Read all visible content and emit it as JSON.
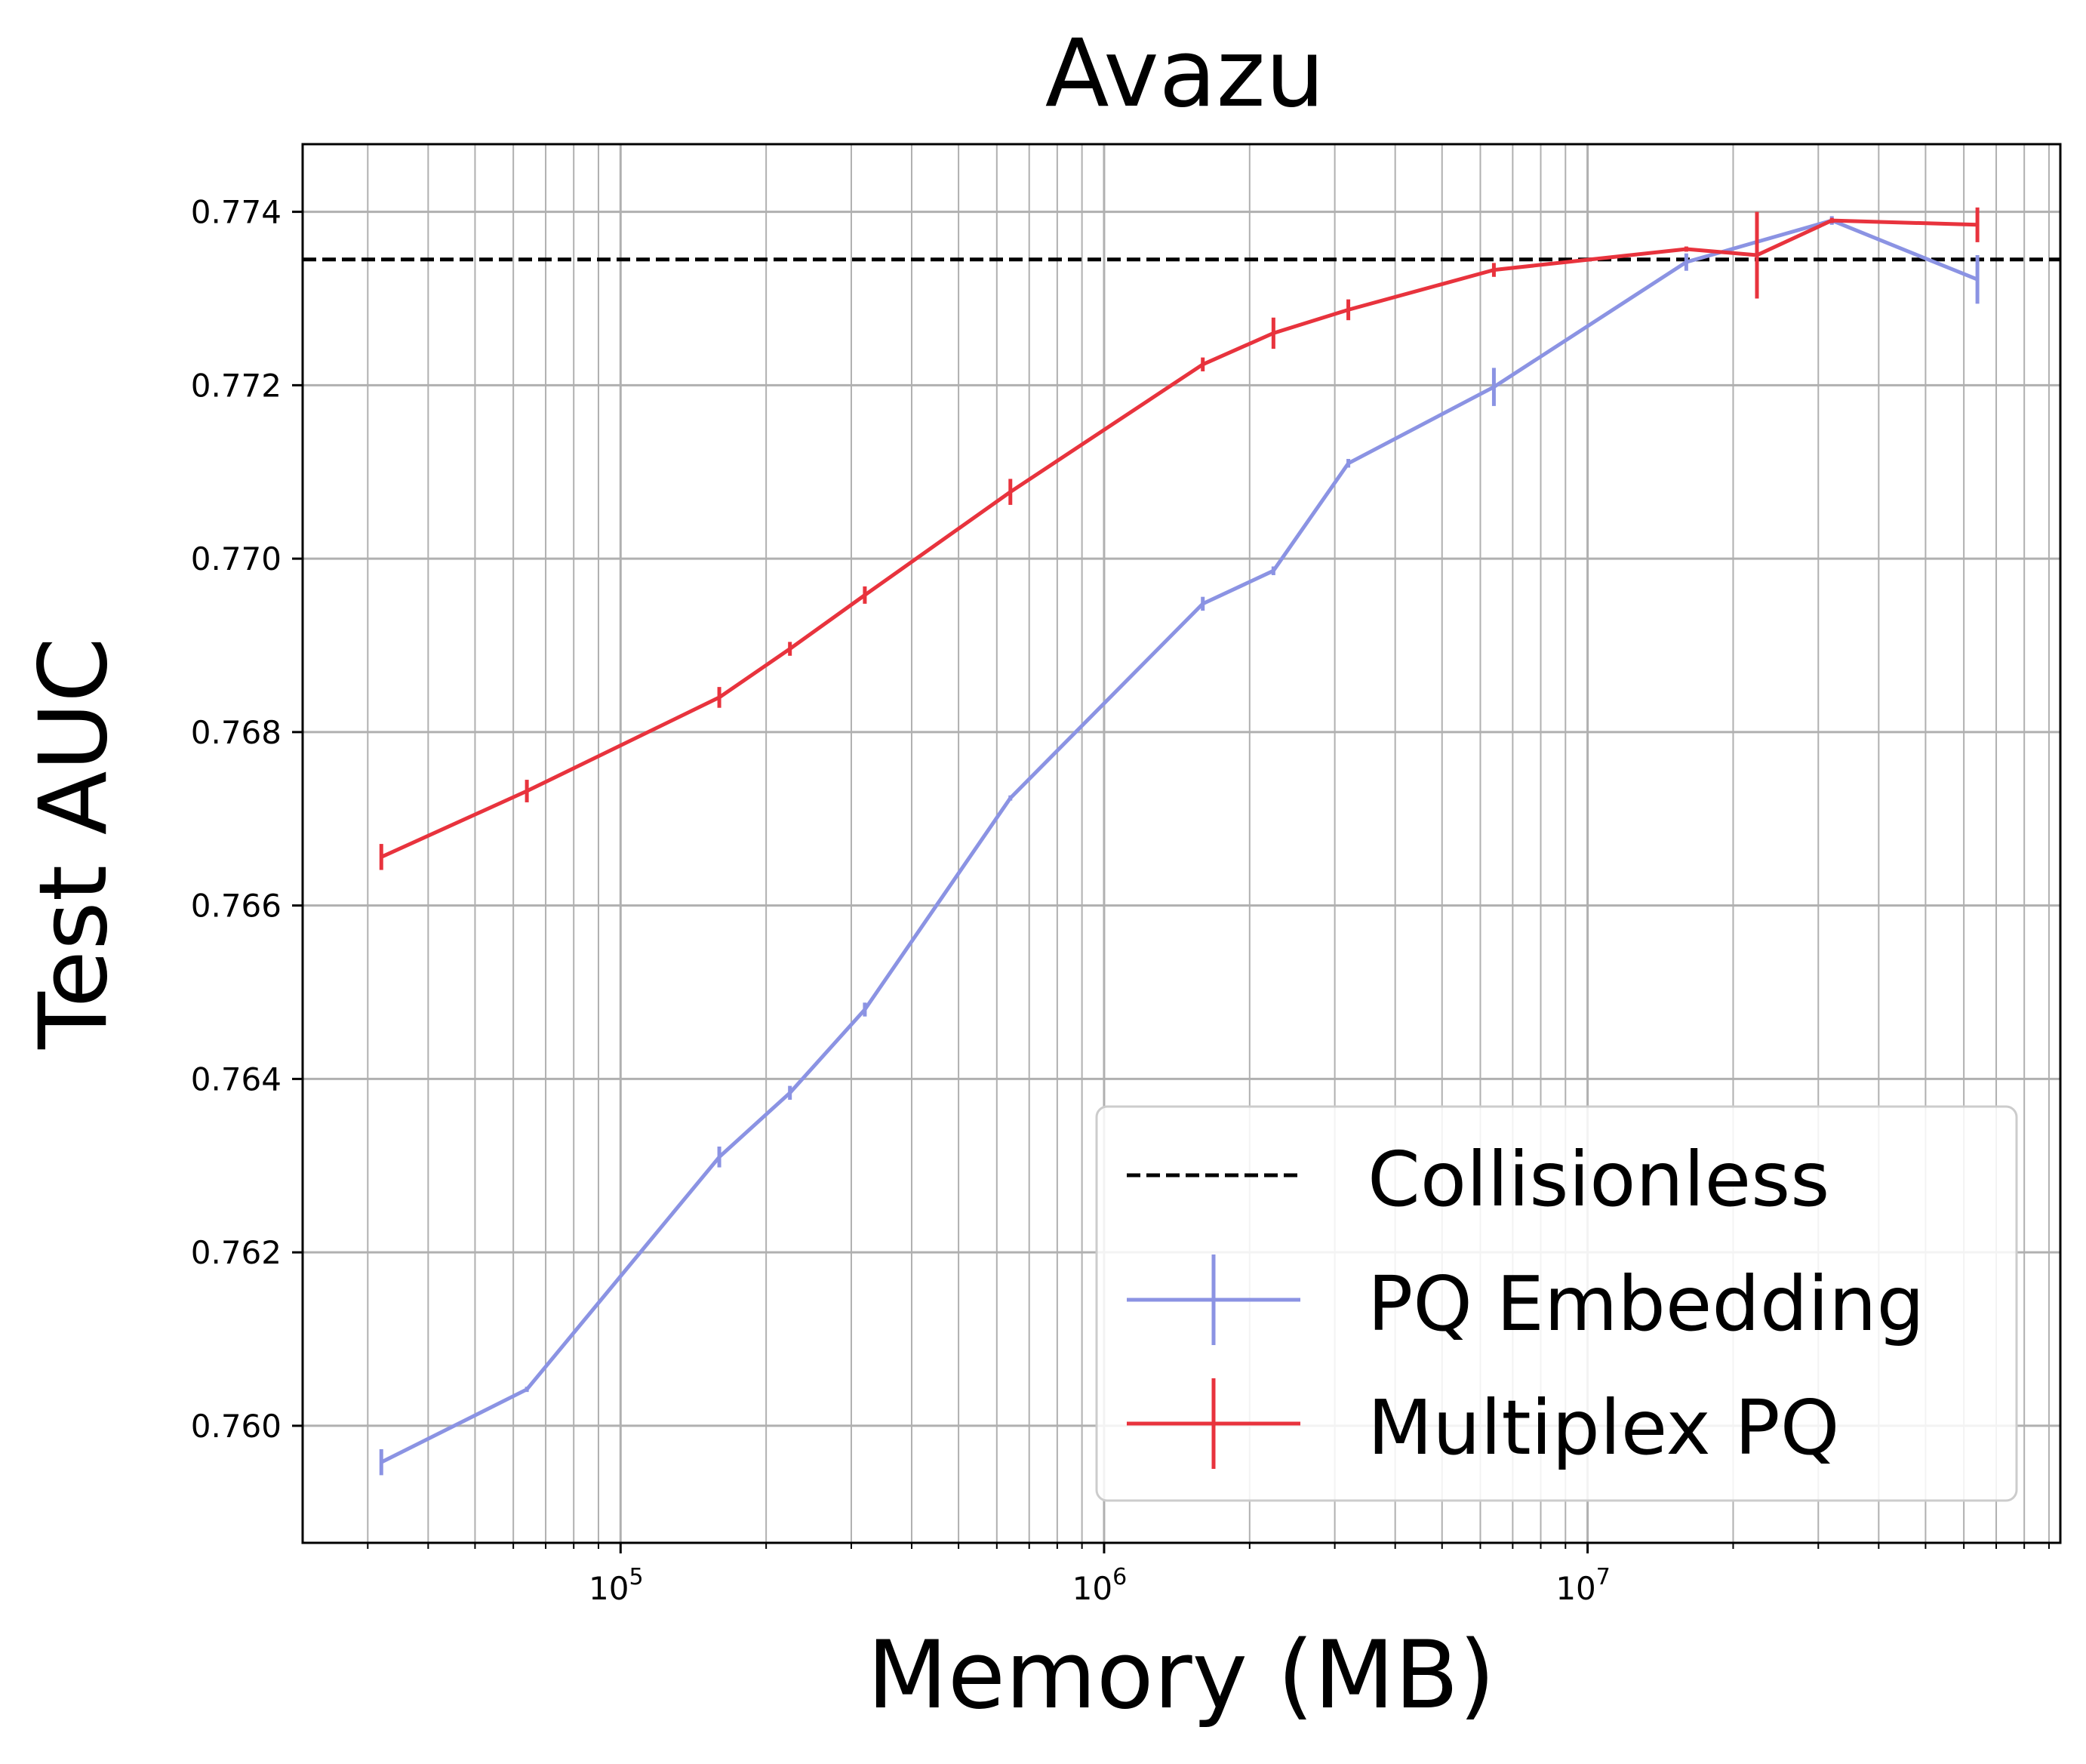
{
  "chart_data": {
    "type": "line",
    "title": "Avazu",
    "xlabel": "Memory (MB)",
    "ylabel": "Test AUC",
    "xscale": "log",
    "xlim": [
      22000,
      95000000
    ],
    "ylim": [
      0.75865,
      0.77478
    ],
    "x_tick_labels": [
      {
        "base": "10",
        "exp": "5"
      },
      {
        "base": "10",
        "exp": "6"
      },
      {
        "base": "10",
        "exp": "7"
      }
    ],
    "y_ticks": [
      0.76,
      0.762,
      0.764,
      0.766,
      0.768,
      0.77,
      0.772,
      0.774
    ],
    "y_tick_labels": [
      "0.760",
      "0.762",
      "0.764",
      "0.766",
      "0.768",
      "0.770",
      "0.772",
      "0.774"
    ],
    "grid": "major and minor",
    "legend_position": "lower-right",
    "reference_line": {
      "name": "Collisionless",
      "y": 0.77345,
      "color": "#000000",
      "style": "dashed"
    },
    "series": [
      {
        "name": "PQ Embedding",
        "color": "#8B93E3",
        "x": [
          32000,
          64000,
          160000,
          224000,
          320000,
          640000,
          1600000,
          2240000,
          3200000,
          6400000,
          16000000,
          32000000,
          64000000
        ],
        "y": [
          0.75958,
          0.76042,
          0.7631,
          0.76384,
          0.7648,
          0.76724,
          0.76948,
          0.76986,
          0.7711,
          0.77198,
          0.77342,
          0.7739,
          0.77322
        ],
        "err": [
          0.00015,
          3e-05,
          0.00012,
          8e-05,
          8e-05,
          3e-05,
          8e-05,
          5e-05,
          5e-05,
          0.00022,
          0.0001,
          5e-05,
          0.00028
        ]
      },
      {
        "name": "Multiplex PQ",
        "color": "#E8333D",
        "x": [
          32000,
          64000,
          160000,
          224000,
          320000,
          640000,
          1600000,
          2240000,
          3200000,
          6400000,
          16000000,
          22400000,
          32000000,
          64000000
        ],
        "y": [
          0.76656,
          0.76732,
          0.7684,
          0.76896,
          0.76958,
          0.77077,
          0.77224,
          0.7726,
          0.77287,
          0.77333,
          0.77357,
          0.7735,
          0.7739,
          0.77385
        ],
        "err": [
          0.00015,
          0.00013,
          0.00012,
          8e-05,
          0.0001,
          0.00015,
          8e-05,
          0.00018,
          0.00012,
          8e-05,
          3e-05,
          0.0005,
          3e-05,
          0.0002
        ]
      }
    ]
  }
}
